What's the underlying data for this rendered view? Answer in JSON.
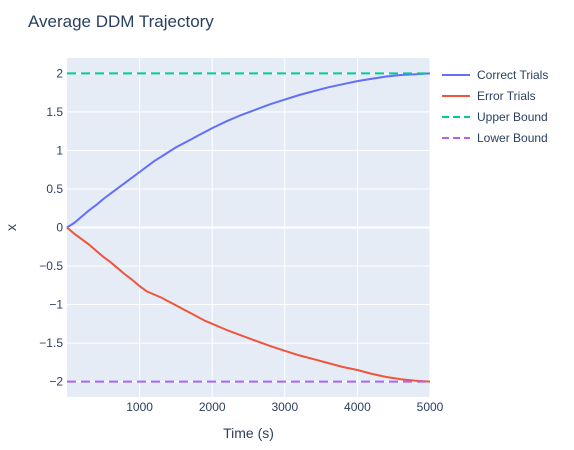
{
  "chart_data": {
    "type": "line",
    "title": "Average DDM Trajectory",
    "xlabel": "Time (s)",
    "ylabel": "x",
    "xlim": [
      0,
      5000
    ],
    "ylim": [
      -2.2,
      2.2
    ],
    "x_ticks": [
      1000,
      2000,
      3000,
      4000,
      5000
    ],
    "x_tick_labels": [
      "1000",
      "2000",
      "3000",
      "4000",
      "5000"
    ],
    "y_ticks": [
      2,
      1.5,
      1,
      0.5,
      0,
      -0.5,
      -1,
      -1.5,
      -2
    ],
    "y_tick_labels": [
      "2",
      "1.5",
      "1",
      "0.5",
      "0",
      "−0.5",
      "−1",
      "−1.5",
      "−2"
    ],
    "grid": true,
    "legend_position": "right",
    "series": [
      {
        "name": "Correct Trials",
        "color": "#636efa",
        "style": "solid",
        "x": [
          0,
          100,
          200,
          300,
          400,
          500,
          600,
          700,
          800,
          900,
          1000,
          1100,
          1200,
          1300,
          1400,
          1500,
          1600,
          1700,
          1800,
          1900,
          2000,
          2200,
          2400,
          2600,
          2800,
          3000,
          3200,
          3400,
          3600,
          3800,
          4000,
          4200,
          4400,
          4600,
          4800,
          5000
        ],
        "values": [
          0,
          0.06,
          0.14,
          0.22,
          0.29,
          0.37,
          0.44,
          0.51,
          0.58,
          0.65,
          0.72,
          0.79,
          0.86,
          0.92,
          0.98,
          1.04,
          1.09,
          1.14,
          1.19,
          1.24,
          1.29,
          1.38,
          1.46,
          1.53,
          1.6,
          1.66,
          1.72,
          1.77,
          1.82,
          1.86,
          1.9,
          1.93,
          1.96,
          1.98,
          1.99,
          2.0
        ]
      },
      {
        "name": "Error Trials",
        "color": "#ef553b",
        "style": "solid",
        "x": [
          0,
          100,
          200,
          300,
          400,
          500,
          600,
          700,
          800,
          900,
          1000,
          1100,
          1200,
          1300,
          1400,
          1500,
          1600,
          1700,
          1800,
          1900,
          2000,
          2200,
          2400,
          2600,
          2800,
          3000,
          3200,
          3400,
          3600,
          3800,
          4000,
          4200,
          4400,
          4600,
          4800,
          5000
        ],
        "values": [
          0,
          -0.08,
          -0.15,
          -0.22,
          -0.3,
          -0.38,
          -0.45,
          -0.53,
          -0.61,
          -0.68,
          -0.76,
          -0.83,
          -0.87,
          -0.91,
          -0.96,
          -1.01,
          -1.06,
          -1.11,
          -1.16,
          -1.21,
          -1.25,
          -1.33,
          -1.4,
          -1.47,
          -1.54,
          -1.6,
          -1.66,
          -1.71,
          -1.76,
          -1.81,
          -1.85,
          -1.9,
          -1.94,
          -1.97,
          -1.99,
          -2.0
        ]
      },
      {
        "name": "Upper Bound",
        "color": "#00cc96",
        "style": "dashed",
        "x": [
          0,
          5000
        ],
        "values": [
          2,
          2
        ]
      },
      {
        "name": "Lower Bound",
        "color": "#ab63fa",
        "style": "dashed",
        "x": [
          0,
          5000
        ],
        "values": [
          -2,
          -2
        ]
      }
    ]
  }
}
